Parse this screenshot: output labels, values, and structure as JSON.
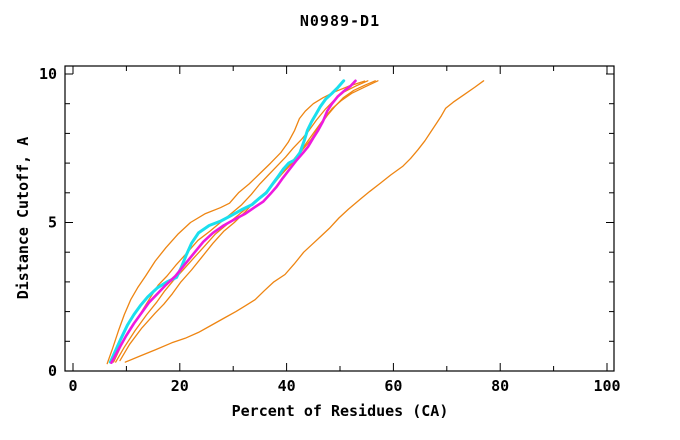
{
  "chart_data": {
    "type": "line",
    "title": "N0989-D1",
    "xlabel": "Percent of Residues (CA)",
    "ylabel": "Distance Cutoff, A",
    "xlim": [
      0,
      100
    ],
    "ylim": [
      0,
      10
    ],
    "x_major_ticks": [
      0,
      20,
      40,
      60,
      80,
      100
    ],
    "x_minor_ticks": [
      10,
      30,
      50,
      70,
      90
    ],
    "y_major_ticks": [
      0,
      5,
      10
    ],
    "y_minor_ticks": [
      1,
      2,
      3,
      4,
      6,
      7,
      8,
      9
    ],
    "grid": false,
    "legend": false,
    "colors": {
      "background": "#ffffff",
      "axis": "#000000",
      "orange": "#ee8512",
      "cyan": "#1adfee",
      "magenta": "#ee1adf"
    },
    "series": [
      {
        "name": "model-orange-1",
        "color": "#ee8512",
        "width": 1.3,
        "points": [
          [
            6.4,
            0.25
          ],
          [
            7.4,
            0.75
          ],
          [
            8.5,
            1.35
          ],
          [
            9.6,
            1.9
          ],
          [
            10.8,
            2.4
          ],
          [
            12.1,
            2.8
          ],
          [
            13.6,
            3.2
          ],
          [
            15.4,
            3.7
          ],
          [
            17.4,
            4.15
          ],
          [
            19.6,
            4.6
          ],
          [
            22,
            5.0
          ],
          [
            24.8,
            5.3
          ],
          [
            27.6,
            5.5
          ],
          [
            29.3,
            5.65
          ],
          [
            31,
            6.0
          ],
          [
            33,
            6.3
          ],
          [
            35,
            6.65
          ],
          [
            37,
            7.0
          ],
          [
            38.9,
            7.35
          ],
          [
            40.3,
            7.7
          ],
          [
            41.5,
            8.1
          ],
          [
            42.4,
            8.5
          ],
          [
            43.5,
            8.75
          ],
          [
            45,
            9.0
          ],
          [
            46.8,
            9.2
          ],
          [
            49,
            9.4
          ],
          [
            51.8,
            9.6
          ],
          [
            54.6,
            9.76
          ]
        ]
      },
      {
        "name": "model-orange-2",
        "color": "#ee8512",
        "width": 1.3,
        "points": [
          [
            7.6,
            0.3
          ],
          [
            9,
            0.85
          ],
          [
            10.6,
            1.4
          ],
          [
            12.5,
            1.9
          ],
          [
            14.4,
            2.45
          ],
          [
            16,
            2.9
          ],
          [
            17.6,
            3.2
          ],
          [
            19.2,
            3.55
          ],
          [
            21.2,
            3.95
          ],
          [
            23.4,
            4.4
          ],
          [
            25.6,
            4.7
          ],
          [
            27.6,
            5.0
          ],
          [
            29.6,
            5.3
          ],
          [
            31.6,
            5.6
          ],
          [
            33.4,
            5.95
          ],
          [
            35,
            6.3
          ],
          [
            36.6,
            6.6
          ],
          [
            38.2,
            6.9
          ],
          [
            39.8,
            7.2
          ],
          [
            41.2,
            7.5
          ],
          [
            42.8,
            7.8
          ],
          [
            44.2,
            8.1
          ],
          [
            45.6,
            8.45
          ],
          [
            47.2,
            8.8
          ],
          [
            48.8,
            9.1
          ],
          [
            50.8,
            9.4
          ],
          [
            53,
            9.6
          ],
          [
            55.2,
            9.77
          ]
        ]
      },
      {
        "name": "model-orange-3",
        "color": "#ee8512",
        "width": 1.3,
        "points": [
          [
            8,
            0.3
          ],
          [
            9.6,
            0.8
          ],
          [
            11.6,
            1.35
          ],
          [
            13.8,
            1.9
          ],
          [
            15.6,
            2.3
          ],
          [
            17.2,
            2.7
          ],
          [
            18.8,
            3.05
          ],
          [
            20.6,
            3.4
          ],
          [
            22.6,
            3.8
          ],
          [
            24.6,
            4.2
          ],
          [
            26.6,
            4.6
          ],
          [
            28.6,
            4.9
          ],
          [
            30.6,
            5.2
          ],
          [
            32.6,
            5.5
          ],
          [
            34.6,
            5.8
          ],
          [
            36.6,
            6.1
          ],
          [
            38.4,
            6.5
          ],
          [
            40,
            6.8
          ],
          [
            41.6,
            7.1
          ],
          [
            43,
            7.45
          ],
          [
            44.6,
            7.8
          ],
          [
            46,
            8.2
          ],
          [
            47.6,
            8.6
          ],
          [
            49,
            8.9
          ],
          [
            50.6,
            9.2
          ],
          [
            52.6,
            9.45
          ],
          [
            54.6,
            9.62
          ],
          [
            56.6,
            9.77
          ]
        ]
      },
      {
        "name": "model-orange-4",
        "color": "#ee8512",
        "width": 1.3,
        "points": [
          [
            8.8,
            0.35
          ],
          [
            10.6,
            0.9
          ],
          [
            12.9,
            1.45
          ],
          [
            15.4,
            1.95
          ],
          [
            17,
            2.25
          ],
          [
            18.6,
            2.6
          ],
          [
            20.2,
            3.0
          ],
          [
            22.2,
            3.4
          ],
          [
            24.2,
            3.85
          ],
          [
            26.2,
            4.3
          ],
          [
            28.2,
            4.7
          ],
          [
            30.2,
            5.0
          ],
          [
            32.2,
            5.35
          ],
          [
            34,
            5.7
          ],
          [
            36,
            6.0
          ],
          [
            37.8,
            6.35
          ],
          [
            39.4,
            6.7
          ],
          [
            41,
            7.05
          ],
          [
            42.6,
            7.4
          ],
          [
            44,
            7.75
          ],
          [
            45.6,
            8.15
          ],
          [
            47,
            8.5
          ],
          [
            48.6,
            8.85
          ],
          [
            50.2,
            9.1
          ],
          [
            52.2,
            9.35
          ],
          [
            54.6,
            9.56
          ],
          [
            57.1,
            9.77
          ]
        ]
      },
      {
        "name": "model-orange-outlier",
        "color": "#ee8512",
        "width": 1.3,
        "points": [
          [
            9.8,
            0.3
          ],
          [
            12.5,
            0.5
          ],
          [
            15.5,
            0.72
          ],
          [
            18.5,
            0.95
          ],
          [
            21,
            1.1
          ],
          [
            23.5,
            1.3
          ],
          [
            26,
            1.55
          ],
          [
            28.5,
            1.8
          ],
          [
            30.5,
            2.0
          ],
          [
            32.3,
            2.2
          ],
          [
            34.1,
            2.4
          ],
          [
            35.8,
            2.7
          ],
          [
            37.6,
            3.0
          ],
          [
            39.7,
            3.25
          ],
          [
            41.4,
            3.6
          ],
          [
            43.2,
            4.0
          ],
          [
            45,
            4.3
          ],
          [
            46.5,
            4.55
          ],
          [
            48,
            4.8
          ],
          [
            49.8,
            5.15
          ],
          [
            51.6,
            5.45
          ],
          [
            53.9,
            5.8
          ],
          [
            55.6,
            6.05
          ],
          [
            57.4,
            6.3
          ],
          [
            59.5,
            6.6
          ],
          [
            61.8,
            6.9
          ],
          [
            63.2,
            7.15
          ],
          [
            64.6,
            7.45
          ],
          [
            65.9,
            7.75
          ],
          [
            67,
            8.05
          ],
          [
            68.1,
            8.35
          ],
          [
            69,
            8.6
          ],
          [
            69.8,
            8.85
          ],
          [
            71.2,
            9.05
          ],
          [
            73.2,
            9.3
          ],
          [
            75.2,
            9.55
          ],
          [
            76.9,
            9.77
          ]
        ]
      },
      {
        "name": "model-cyan",
        "color": "#1adfee",
        "width": 3,
        "points": [
          [
            7,
            0.3
          ],
          [
            8,
            0.7
          ],
          [
            9,
            1.1
          ],
          [
            10.2,
            1.55
          ],
          [
            11.4,
            1.9
          ],
          [
            12.6,
            2.2
          ],
          [
            14,
            2.5
          ],
          [
            15.8,
            2.8
          ],
          [
            17.6,
            3.0
          ],
          [
            19.4,
            3.15
          ],
          [
            20.3,
            3.5
          ],
          [
            21.2,
            3.9
          ],
          [
            22.2,
            4.3
          ],
          [
            23.5,
            4.65
          ],
          [
            25.5,
            4.9
          ],
          [
            27.7,
            5.05
          ],
          [
            29.8,
            5.25
          ],
          [
            31.8,
            5.45
          ],
          [
            33.5,
            5.6
          ],
          [
            34.8,
            5.8
          ],
          [
            36.2,
            6.0
          ],
          [
            37.4,
            6.3
          ],
          [
            38.4,
            6.55
          ],
          [
            39.4,
            6.8
          ],
          [
            40.4,
            7.0
          ],
          [
            41.5,
            7.1
          ],
          [
            42.5,
            7.35
          ],
          [
            43.3,
            7.75
          ],
          [
            43.9,
            8.1
          ],
          [
            44.7,
            8.4
          ],
          [
            45.5,
            8.65
          ],
          [
            46.3,
            8.9
          ],
          [
            47.3,
            9.15
          ],
          [
            48.5,
            9.35
          ],
          [
            49.6,
            9.55
          ],
          [
            50.7,
            9.77
          ]
        ]
      },
      {
        "name": "model-magenta",
        "color": "#ee1adf",
        "width": 2.6,
        "points": [
          [
            7.2,
            0.28
          ],
          [
            8.6,
            0.75
          ],
          [
            10,
            1.2
          ],
          [
            11.4,
            1.6
          ],
          [
            12.8,
            1.95
          ],
          [
            14.2,
            2.3
          ],
          [
            15.8,
            2.6
          ],
          [
            17.4,
            2.9
          ],
          [
            19.2,
            3.2
          ],
          [
            21,
            3.6
          ],
          [
            22.8,
            4.0
          ],
          [
            24.4,
            4.35
          ],
          [
            26.2,
            4.65
          ],
          [
            28.2,
            4.9
          ],
          [
            30.2,
            5.1
          ],
          [
            32.3,
            5.3
          ],
          [
            33.9,
            5.5
          ],
          [
            35.6,
            5.7
          ],
          [
            36.9,
            5.95
          ],
          [
            38.1,
            6.2
          ],
          [
            39.3,
            6.5
          ],
          [
            40.6,
            6.8
          ],
          [
            41.9,
            7.1
          ],
          [
            43.1,
            7.35
          ],
          [
            44,
            7.55
          ],
          [
            45,
            7.85
          ],
          [
            45.9,
            8.1
          ],
          [
            46.8,
            8.4
          ],
          [
            47.6,
            8.75
          ],
          [
            48.5,
            9.0
          ],
          [
            49.6,
            9.25
          ],
          [
            50.9,
            9.45
          ],
          [
            52,
            9.6
          ],
          [
            52.9,
            9.77
          ]
        ]
      }
    ]
  }
}
